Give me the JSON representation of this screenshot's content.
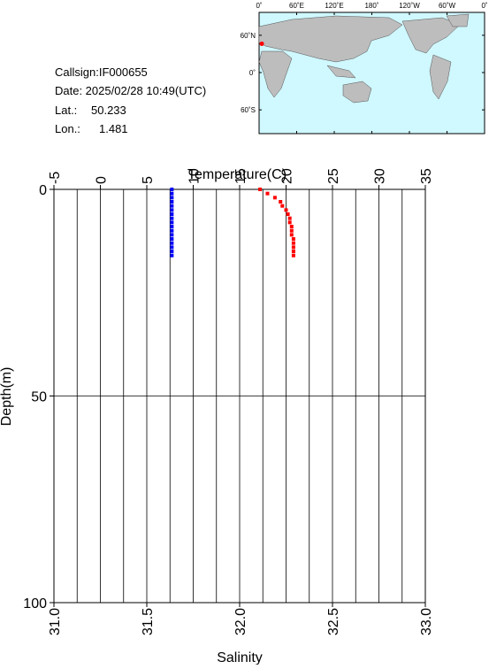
{
  "info": {
    "callsign": "Callsign:IF000655",
    "date": "Date:  2025/02/28 10:49(UTC)",
    "lat": {
      "label": "Lat.:",
      "value": 50.233
    },
    "lon": {
      "label": "Lon.:",
      "value": 1.481
    }
  },
  "map": {
    "lon_ticks": [
      {
        "value": 0,
        "label": "0˚"
      },
      {
        "value": 60,
        "label": "60˚E"
      },
      {
        "value": 120,
        "label": "120˚E"
      },
      {
        "value": 180,
        "label": "180˚"
      },
      {
        "value": 240,
        "label": "120˚W"
      },
      {
        "value": 300,
        "label": "60˚W"
      },
      {
        "value": 360,
        "label": "0˚"
      }
    ],
    "lat_ticks": [
      {
        "value": 60,
        "label": "60˚N"
      },
      {
        "value": 0,
        "label": "0˚"
      },
      {
        "value": -60,
        "label": "60˚S"
      }
    ],
    "point_color": "#ff0000"
  },
  "chart_data": {
    "type": "profile",
    "title": "Temperature(C)",
    "x2_label": "Salinity",
    "y_label": "Depth(m)",
    "xlim": [
      -5,
      35
    ],
    "xticks": [
      -5,
      0,
      5,
      10,
      15,
      20,
      25,
      30,
      35
    ],
    "x_minor_ticks": [
      -2.5,
      2.5,
      7.5,
      12.5,
      17.5,
      22.5,
      27.5,
      32.5
    ],
    "x2lim": [
      31.0,
      33.0
    ],
    "x2ticks": [
      {
        "value": 31.0,
        "label": "31.0"
      },
      {
        "value": 31.5,
        "label": "31.5"
      },
      {
        "value": 32.0,
        "label": "32.0"
      },
      {
        "value": 32.5,
        "label": "32.5"
      },
      {
        "value": 33.0,
        "label": "33.0"
      }
    ],
    "ylim": [
      0,
      100
    ],
    "yticks": [
      0,
      50,
      100
    ],
    "grid": true,
    "depth": [
      0,
      1,
      2,
      3,
      4,
      5,
      6,
      7,
      8,
      9,
      10,
      11,
      12,
      13,
      14,
      15,
      16
    ],
    "series": [
      {
        "axis": "x",
        "color": "#0000ff",
        "values": [
          7.7,
          7.7,
          7.7,
          7.7,
          7.7,
          7.7,
          7.7,
          7.7,
          7.7,
          7.7,
          7.7,
          7.7,
          7.7,
          7.7,
          7.7,
          7.7,
          7.7
        ]
      },
      {
        "axis": "x2",
        "color": "#ff0000",
        "values": [
          32.11,
          32.15,
          32.19,
          32.22,
          32.23,
          32.25,
          32.26,
          32.27,
          32.27,
          32.28,
          32.28,
          32.28,
          32.29,
          32.29,
          32.29,
          32.29,
          32.29
        ]
      }
    ]
  }
}
